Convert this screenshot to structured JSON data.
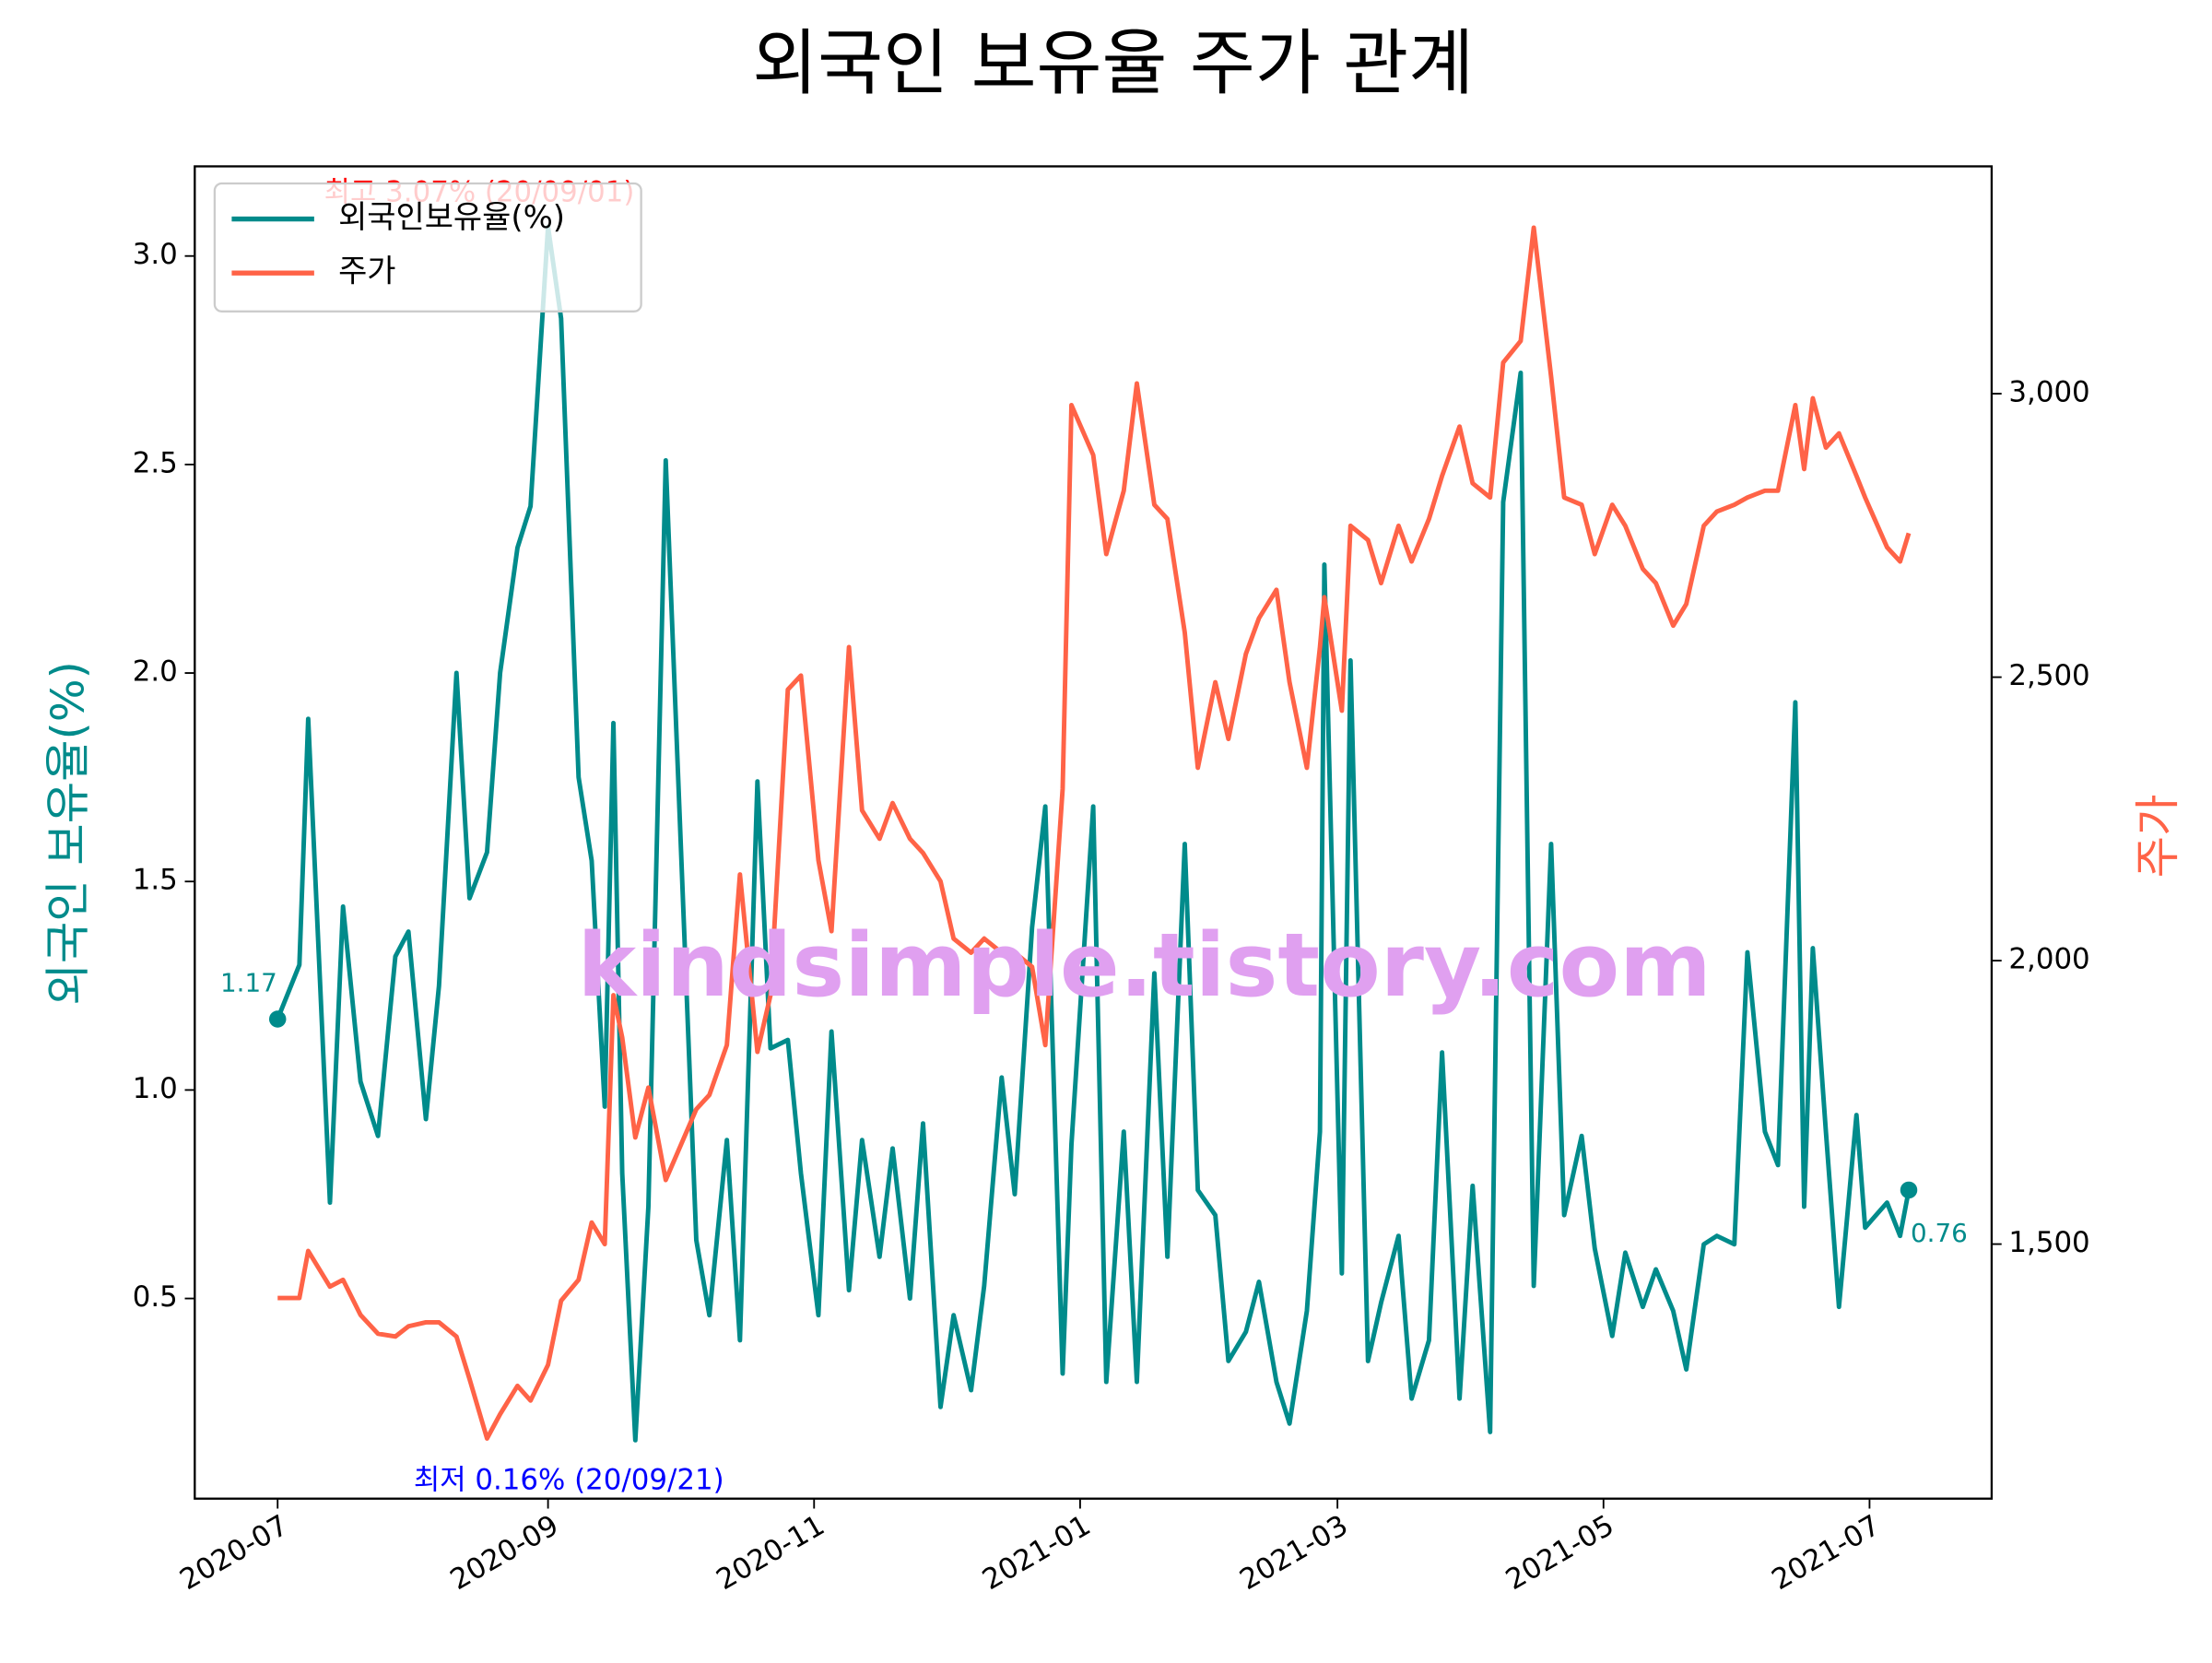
{
  "chart_data": {
    "type": "line",
    "title": "외국인 보유율 주가 관계",
    "ylabel": "외국인 보유율(%)",
    "y2label": "주가",
    "x": [
      "2020-07-01",
      "2020-07-06",
      "2020-07-08",
      "2020-07-13",
      "2020-07-16",
      "2020-07-20",
      "2020-07-24",
      "2020-07-28",
      "2020-07-31",
      "2020-08-04",
      "2020-08-07",
      "2020-08-11",
      "2020-08-14",
      "2020-08-18",
      "2020-08-21",
      "2020-08-25",
      "2020-08-28",
      "2020-09-01",
      "2020-09-04",
      "2020-09-08",
      "2020-09-11",
      "2020-09-14",
      "2020-09-16",
      "2020-09-18",
      "2020-09-21",
      "2020-09-24",
      "2020-09-28",
      "2020-10-05",
      "2020-10-08",
      "2020-10-12",
      "2020-10-15",
      "2020-10-19",
      "2020-10-22",
      "2020-10-26",
      "2020-10-29",
      "2020-11-02",
      "2020-11-05",
      "2020-11-09",
      "2020-11-12",
      "2020-11-16",
      "2020-11-19",
      "2020-11-23",
      "2020-11-26",
      "2020-11-30",
      "2020-12-03",
      "2020-12-07",
      "2020-12-10",
      "2020-12-14",
      "2020-12-17",
      "2020-12-21",
      "2020-12-24",
      "2020-12-28",
      "2020-12-30",
      "2021-01-04",
      "2021-01-07",
      "2021-01-11",
      "2021-01-14",
      "2021-01-18",
      "2021-01-21",
      "2021-01-25",
      "2021-01-28",
      "2021-02-01",
      "2021-02-04",
      "2021-02-08",
      "2021-02-11",
      "2021-02-15",
      "2021-02-18",
      "2021-02-22",
      "2021-02-25",
      "2021-02-26",
      "2021-03-02",
      "2021-03-04",
      "2021-03-08",
      "2021-03-11",
      "2021-03-15",
      "2021-03-18",
      "2021-03-22",
      "2021-03-25",
      "2021-03-29",
      "2021-04-01",
      "2021-04-05",
      "2021-04-08",
      "2021-04-12",
      "2021-04-15",
      "2021-04-19",
      "2021-04-22",
      "2021-04-26",
      "2021-04-29",
      "2021-05-03",
      "2021-05-06",
      "2021-05-10",
      "2021-05-13",
      "2021-05-17",
      "2021-05-20",
      "2021-05-24",
      "2021-05-27",
      "2021-05-31",
      "2021-06-03",
      "2021-06-07",
      "2021-06-10",
      "2021-06-14",
      "2021-06-16",
      "2021-06-18",
      "2021-06-21",
      "2021-06-24",
      "2021-06-28",
      "2021-06-30",
      "2021-07-05",
      "2021-07-08",
      "2021-07-10"
    ],
    "series": [
      {
        "name": "외국인보유율(%)",
        "color": "#008b8b",
        "values": [
          1.17,
          1.3,
          1.89,
          0.73,
          1.44,
          1.02,
          0.89,
          1.32,
          1.38,
          0.93,
          1.25,
          2.0,
          1.46,
          1.57,
          2.0,
          2.3,
          2.4,
          3.07,
          2.85,
          1.75,
          1.55,
          0.96,
          1.88,
          0.8,
          0.16,
          0.72,
          2.51,
          0.64,
          0.46,
          0.88,
          0.4,
          1.74,
          1.1,
          1.12,
          0.8,
          0.46,
          1.14,
          0.52,
          0.88,
          0.6,
          0.86,
          0.5,
          0.92,
          0.24,
          0.46,
          0.28,
          0.53,
          1.03,
          0.75,
          1.39,
          1.68,
          0.32,
          0.87,
          1.68,
          0.3,
          0.9,
          0.3,
          1.28,
          0.6,
          1.59,
          0.76,
          0.7,
          0.35,
          0.42,
          0.54,
          0.3,
          0.2,
          0.47,
          0.9,
          2.26,
          0.56,
          2.03,
          0.35,
          0.49,
          0.65,
          0.26,
          0.4,
          1.09,
          0.26,
          0.77,
          0.18,
          2.41,
          2.72,
          0.53,
          1.59,
          0.7,
          0.89,
          0.62,
          0.41,
          0.61,
          0.48,
          0.57,
          0.47,
          0.33,
          0.63,
          0.65,
          0.63,
          1.33,
          0.9,
          0.82,
          1.93,
          0.72,
          1.34,
          0.9,
          0.48,
          0.94,
          0.67,
          0.73,
          0.65,
          0.76
        ]
      },
      {
        "name": "주가",
        "color": "#ff6347",
        "axis": "y2",
        "values": [
          1405,
          1405,
          1488,
          1425,
          1437,
          1375,
          1342,
          1337,
          1355,
          1362,
          1362,
          1337,
          1262,
          1157,
          1200,
          1250,
          1224,
          1287,
          1400,
          1437,
          1538,
          1500,
          1939,
          1864,
          1688,
          1776,
          1613,
          1738,
          1763,
          1851,
          2152,
          1839,
          1939,
          2478,
          2503,
          2177,
          2052,
          2553,
          2265,
          2215,
          2278,
          2215,
          2190,
          2140,
          2039,
          2014,
          2039,
          2014,
          2014,
          1989,
          1851,
          2303,
          2980,
          2892,
          2717,
          2829,
          3018,
          2804,
          2779,
          2579,
          2340,
          2491,
          2391,
          2541,
          2604,
          2654,
          2491,
          2340,
          2553,
          2641,
          2441,
          2767,
          2742,
          2666,
          2767,
          2704,
          2779,
          2855,
          2942,
          2842,
          2817,
          3055,
          3093,
          3293,
          3030,
          2817,
          2804,
          2717,
          2804,
          2767,
          2691,
          2666,
          2591,
          2629,
          2767,
          2792,
          2804,
          2817,
          2829,
          2829,
          2980,
          2867,
          2992,
          2905,
          2930,
          2855,
          2817,
          2729,
          2704,
          2754
        ]
      }
    ],
    "xlim": [
      "2020-06-12",
      "2021-07-29"
    ],
    "xticks": [
      {
        "value": "2020-07-01",
        "label": "2020-07"
      },
      {
        "value": "2020-09-01",
        "label": "2020-09"
      },
      {
        "value": "2020-11-01",
        "label": "2020-11"
      },
      {
        "value": "2021-01-01",
        "label": "2021-01"
      },
      {
        "value": "2021-03-01",
        "label": "2021-03"
      },
      {
        "value": "2021-05-01",
        "label": "2021-05"
      },
      {
        "value": "2021-07-01",
        "label": "2021-07"
      }
    ],
    "ylim": [
      0.02,
      3.215
    ],
    "yticks": [
      0.5,
      {
        "value": 1.0,
        "label": "1.0"
      },
      1.5,
      {
        "value": 2.0,
        "label": "2.0"
      },
      2.5,
      {
        "value": 3.0,
        "label": "3.0"
      }
    ],
    "y2lim": [
      1051,
      3401
    ],
    "y2ticks": [
      {
        "value": 1500,
        "label": "1,500"
      },
      {
        "value": 2000,
        "label": "2,000"
      },
      {
        "value": 2500,
        "label": "2,500"
      },
      {
        "value": 3000,
        "label": "3,000"
      }
    ],
    "legend": "upper left",
    "annotations": [
      {
        "text": "최고 3.07% (20/09/01)",
        "color": "#ff0000"
      },
      {
        "text": "최저 0.16% (20/09/21)",
        "color": "#0000ff"
      },
      {
        "text": "1.17",
        "color": "#008b8b"
      },
      {
        "text": "0.76",
        "color": "#008b8b"
      }
    ],
    "watermark": "kindsimple.tistory.com"
  }
}
